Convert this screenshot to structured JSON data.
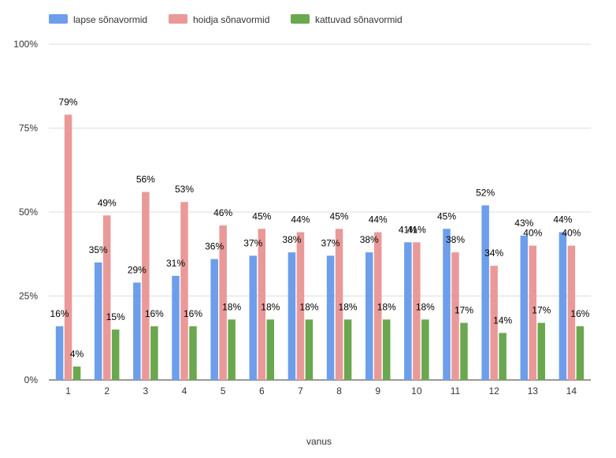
{
  "chart_data": {
    "type": "bar",
    "xlabel": "vanus",
    "ylabel": "",
    "ylim": [
      0,
      100
    ],
    "y_ticks": [
      "0%",
      "25%",
      "50%",
      "75%",
      "100%"
    ],
    "grid": true,
    "legend_position": "top-left",
    "categories": [
      "1",
      "2",
      "3",
      "4",
      "5",
      "6",
      "7",
      "8",
      "9",
      "10",
      "11",
      "12",
      "13",
      "14"
    ],
    "series": [
      {
        "name": "lapse sõnavormid",
        "color": "#6d9eeb",
        "values": [
          16,
          35,
          29,
          31,
          36,
          37,
          38,
          37,
          38,
          41,
          45,
          52,
          43,
          44
        ],
        "labels": [
          "16%",
          "35%",
          "29%",
          "31%",
          "36%",
          "37%",
          "38%",
          "37%",
          "38%",
          "41%",
          "45%",
          "52%",
          "43%",
          "44%"
        ]
      },
      {
        "name": "hoidja sõnavormid",
        "color": "#ea9999",
        "values": [
          79,
          49,
          56,
          53,
          46,
          45,
          44,
          45,
          44,
          41,
          38,
          34,
          40,
          40
        ],
        "labels": [
          "79%",
          "49%",
          "56%",
          "53%",
          "46%",
          "45%",
          "44%",
          "45%",
          "44%",
          "41%",
          "38%",
          "34%",
          "40%",
          "40%"
        ]
      },
      {
        "name": "kattuvad sõnavormid",
        "color": "#6aa84f",
        "values": [
          4,
          15,
          16,
          16,
          18,
          18,
          18,
          18,
          18,
          18,
          17,
          14,
          17,
          16
        ],
        "labels": [
          "4%",
          "15%",
          "16%",
          "16%",
          "18%",
          "18%",
          "18%",
          "18%",
          "18%",
          "18%",
          "17%",
          "14%",
          "17%",
          "16%"
        ]
      }
    ]
  }
}
